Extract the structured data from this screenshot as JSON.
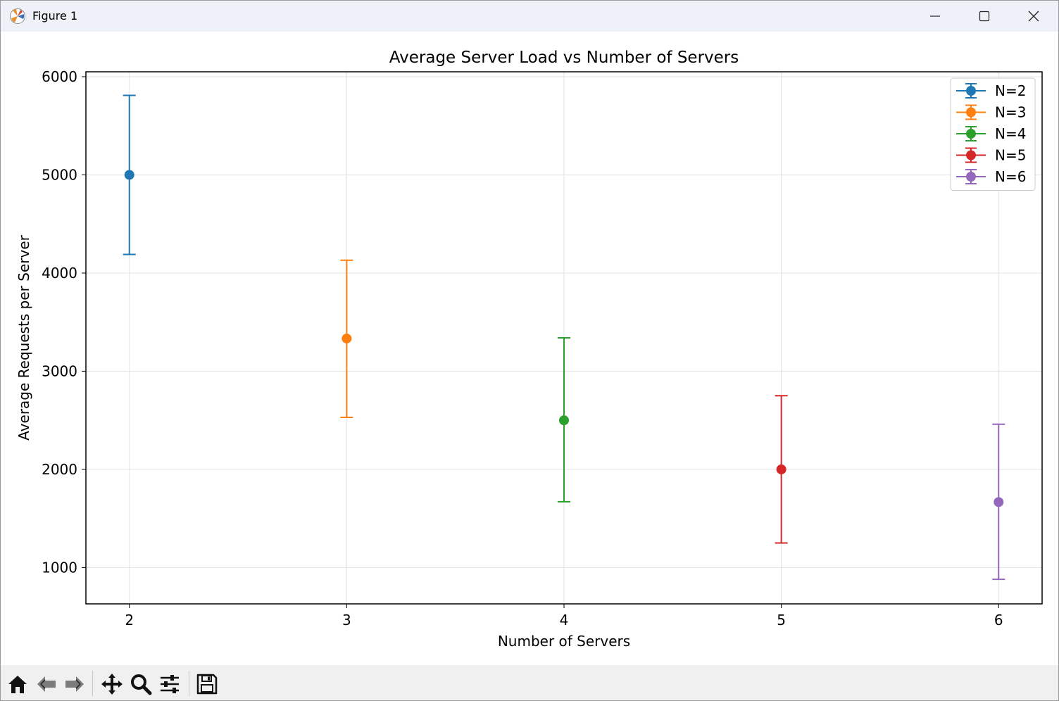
{
  "window": {
    "title": "Figure 1",
    "controls": [
      "minimize-icon",
      "maximize-icon",
      "close-icon"
    ]
  },
  "toolbar": {
    "buttons": [
      "home-icon",
      "back-arrow-icon",
      "forward-arrow-icon",
      "pan-icon",
      "zoom-icon",
      "configure-subplots-icon",
      "save-icon"
    ]
  },
  "chart_data": {
    "type": "scatter",
    "title": "Average Server Load vs Number of Servers",
    "xlabel": "Number of Servers",
    "ylabel": "Average Requests per Server",
    "xlim": [
      1.8,
      6.2
    ],
    "ylim": [
      630,
      6050
    ],
    "xticks": [
      2,
      3,
      4,
      5,
      6
    ],
    "yticks": [
      1000,
      2000,
      3000,
      4000,
      5000,
      6000
    ],
    "grid": true,
    "legend_position": "top-right",
    "series": [
      {
        "name": "N=2",
        "x": 2,
        "y": 5000,
        "yerr_low": 4190,
        "yerr_high": 5810,
        "color": "#1f77b4"
      },
      {
        "name": "N=3",
        "x": 3,
        "y": 3333,
        "yerr_low": 2530,
        "yerr_high": 4130,
        "color": "#ff7f0e"
      },
      {
        "name": "N=4",
        "x": 4,
        "y": 2500,
        "yerr_low": 1670,
        "yerr_high": 3340,
        "color": "#2ca02c"
      },
      {
        "name": "N=5",
        "x": 5,
        "y": 2000,
        "yerr_low": 1250,
        "yerr_high": 2750,
        "color": "#d62728"
      },
      {
        "name": "N=6",
        "x": 6,
        "y": 1667,
        "yerr_low": 880,
        "yerr_high": 2460,
        "color": "#9467bd"
      }
    ]
  }
}
